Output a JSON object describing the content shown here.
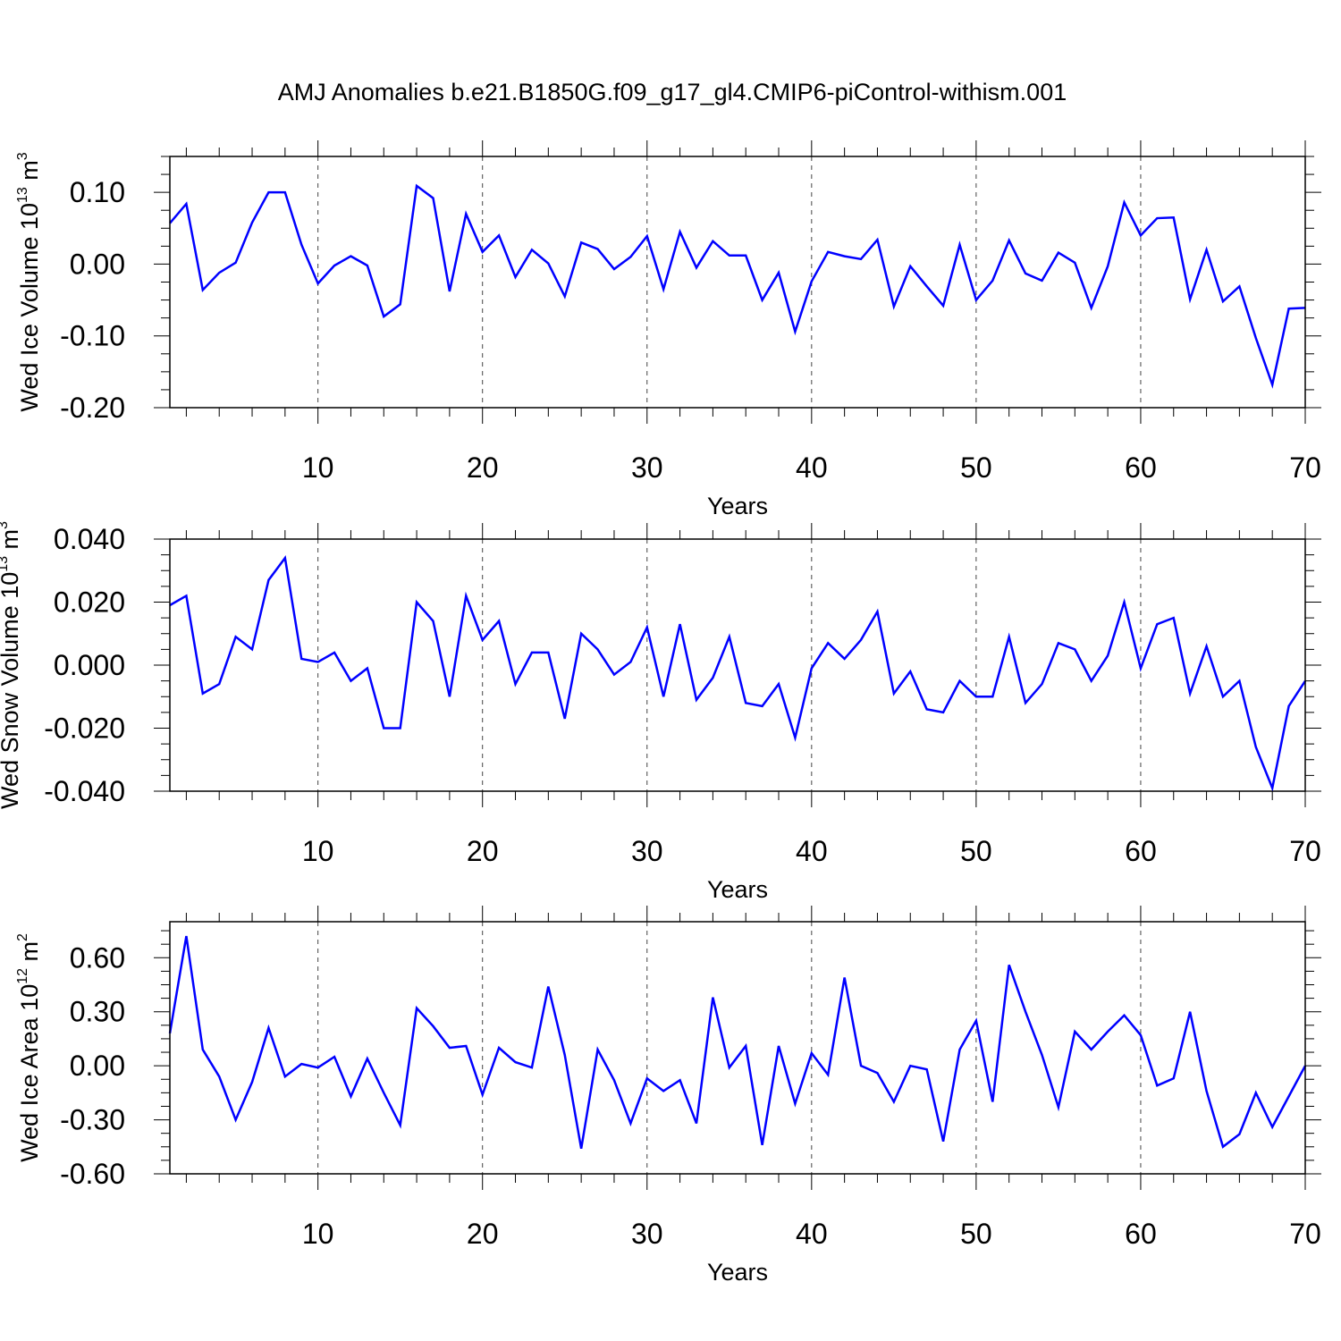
{
  "figure": {
    "title": "AMJ Anomalies b.e21.B1850G.f09_g17_gl4.CMIP6-piControl-withism.001"
  },
  "chart_data": [
    {
      "type": "line",
      "title": "",
      "xlabel": "Years",
      "ylabel": "Wed Ice Volume 10",
      "ylabel_exp": "13",
      "ylabel_unit": " m",
      "ylabel_unit_exp": "3",
      "xlim": [
        1,
        70
      ],
      "ylim": [
        -0.2,
        0.15
      ],
      "xticks": [
        10,
        20,
        30,
        40,
        50,
        60,
        70
      ],
      "yticks": [
        "0.10",
        "0.00",
        "-0.10",
        "-0.20"
      ],
      "ytick_values": [
        0.1,
        0.0,
        -0.1,
        -0.2
      ],
      "grid": "vertical dashed at major x ticks",
      "line_color": "#0000ff",
      "x": [
        1,
        2,
        3,
        4,
        5,
        6,
        7,
        8,
        9,
        10,
        11,
        12,
        13,
        14,
        15,
        16,
        17,
        18,
        19,
        20,
        21,
        22,
        23,
        24,
        25,
        26,
        27,
        28,
        29,
        30,
        31,
        32,
        33,
        34,
        35,
        36,
        37,
        38,
        39,
        40,
        41,
        42,
        43,
        44,
        45,
        46,
        47,
        48,
        49,
        50,
        51,
        52,
        53,
        54,
        55,
        56,
        57,
        58,
        59,
        60,
        61,
        62,
        63,
        64,
        65,
        66,
        67,
        68,
        69,
        70
      ],
      "y": [
        0.057,
        0.084,
        -0.036,
        -0.012,
        0.002,
        0.058,
        0.1,
        0.1,
        0.027,
        -0.027,
        -0.002,
        0.011,
        -0.002,
        -0.073,
        -0.056,
        0.109,
        0.092,
        -0.038,
        0.07,
        0.017,
        0.04,
        -0.018,
        0.02,
        0.001,
        -0.045,
        0.03,
        0.021,
        -0.007,
        0.01,
        0.039,
        -0.035,
        0.045,
        -0.005,
        0.032,
        0.012,
        0.012,
        -0.05,
        -0.012,
        -0.094,
        -0.024,
        0.017,
        0.011,
        0.007,
        0.034,
        -0.059,
        -0.003,
        -0.031,
        -0.058,
        0.027,
        -0.05,
        -0.023,
        0.033,
        -0.013,
        -0.023,
        0.016,
        0.002,
        -0.061,
        -0.003,
        0.086,
        0.04,
        0.064,
        0.065,
        -0.049,
        0.02,
        -0.052,
        -0.031,
        -0.103,
        -0.168,
        -0.062,
        -0.061
      ]
    },
    {
      "type": "line",
      "title": "",
      "xlabel": "Years",
      "ylabel": "Wed Snow Volume 10",
      "ylabel_exp": "13",
      "ylabel_unit": " m",
      "ylabel_unit_exp": "3",
      "xlim": [
        1,
        70
      ],
      "ylim": [
        -0.04,
        0.04
      ],
      "xticks": [
        10,
        20,
        30,
        40,
        50,
        60,
        70
      ],
      "yticks": [
        "0.040",
        "0.020",
        "0.000",
        "-0.020",
        "-0.040"
      ],
      "ytick_values": [
        0.04,
        0.02,
        0.0,
        -0.02,
        -0.04
      ],
      "grid": "vertical dashed at major x ticks",
      "line_color": "#0000ff",
      "x": [
        1,
        2,
        3,
        4,
        5,
        6,
        7,
        8,
        9,
        10,
        11,
        12,
        13,
        14,
        15,
        16,
        17,
        18,
        19,
        20,
        21,
        22,
        23,
        24,
        25,
        26,
        27,
        28,
        29,
        30,
        31,
        32,
        33,
        34,
        35,
        36,
        37,
        38,
        39,
        40,
        41,
        42,
        43,
        44,
        45,
        46,
        47,
        48,
        49,
        50,
        51,
        52,
        53,
        54,
        55,
        56,
        57,
        58,
        59,
        60,
        61,
        62,
        63,
        64,
        65,
        66,
        67,
        68,
        69,
        70
      ],
      "y": [
        0.019,
        0.022,
        -0.009,
        -0.006,
        0.009,
        0.005,
        0.027,
        0.034,
        0.002,
        0.001,
        0.004,
        -0.005,
        -0.001,
        -0.02,
        -0.02,
        0.02,
        0.014,
        -0.01,
        0.022,
        0.008,
        0.014,
        -0.006,
        0.004,
        0.004,
        -0.017,
        0.01,
        0.005,
        -0.003,
        0.001,
        0.012,
        -0.01,
        0.013,
        -0.011,
        -0.004,
        0.009,
        -0.012,
        -0.013,
        -0.006,
        -0.023,
        -0.001,
        0.007,
        0.002,
        0.008,
        0.017,
        -0.009,
        -0.002,
        -0.014,
        -0.015,
        -0.005,
        -0.01,
        -0.01,
        0.009,
        -0.012,
        -0.006,
        0.007,
        0.005,
        -0.005,
        0.003,
        0.02,
        -0.001,
        0.013,
        0.015,
        -0.009,
        0.006,
        -0.01,
        -0.005,
        -0.026,
        -0.039,
        -0.013,
        -0.005
      ]
    },
    {
      "type": "line",
      "title": "",
      "xlabel": "Years",
      "ylabel": "Wed Ice Area 10",
      "ylabel_exp": "12",
      "ylabel_unit": " m",
      "ylabel_unit_exp": "2",
      "xlim": [
        1,
        70
      ],
      "ylim": [
        -0.6,
        0.8
      ],
      "xticks": [
        10,
        20,
        30,
        40,
        50,
        60,
        70
      ],
      "yticks": [
        "0.60",
        "0.30",
        "0.00",
        "-0.30",
        "-0.60"
      ],
      "ytick_values": [
        0.6,
        0.3,
        0.0,
        -0.3,
        -0.6
      ],
      "grid": "vertical dashed at major x ticks",
      "line_color": "#0000ff",
      "x": [
        1,
        2,
        3,
        4,
        5,
        6,
        7,
        8,
        9,
        10,
        11,
        12,
        13,
        14,
        15,
        16,
        17,
        18,
        19,
        20,
        21,
        22,
        23,
        24,
        25,
        26,
        27,
        28,
        29,
        30,
        31,
        32,
        33,
        34,
        35,
        36,
        37,
        38,
        39,
        40,
        41,
        42,
        43,
        44,
        45,
        46,
        47,
        48,
        49,
        50,
        51,
        52,
        53,
        54,
        55,
        56,
        57,
        58,
        59,
        60,
        61,
        62,
        63,
        64,
        65,
        66,
        67,
        68,
        69,
        70
      ],
      "y": [
        0.18,
        0.72,
        0.09,
        -0.06,
        -0.3,
        -0.09,
        0.21,
        -0.06,
        0.01,
        -0.01,
        0.05,
        -0.17,
        0.04,
        -0.15,
        -0.33,
        0.32,
        0.22,
        0.1,
        0.11,
        -0.16,
        0.1,
        0.02,
        -0.01,
        0.44,
        0.06,
        -0.46,
        0.09,
        -0.08,
        -0.32,
        -0.07,
        -0.14,
        -0.08,
        -0.32,
        0.38,
        -0.01,
        0.11,
        -0.44,
        0.11,
        -0.21,
        0.07,
        -0.05,
        0.49,
        0.0,
        -0.04,
        -0.2,
        0.0,
        -0.02,
        -0.42,
        0.09,
        0.25,
        -0.2,
        0.56,
        0.3,
        0.06,
        -0.23,
        0.19,
        0.09,
        0.19,
        0.28,
        0.17,
        -0.11,
        -0.07,
        0.3,
        -0.14,
        -0.45,
        -0.38,
        -0.15,
        -0.34,
        -0.17,
        0.0
      ]
    }
  ]
}
